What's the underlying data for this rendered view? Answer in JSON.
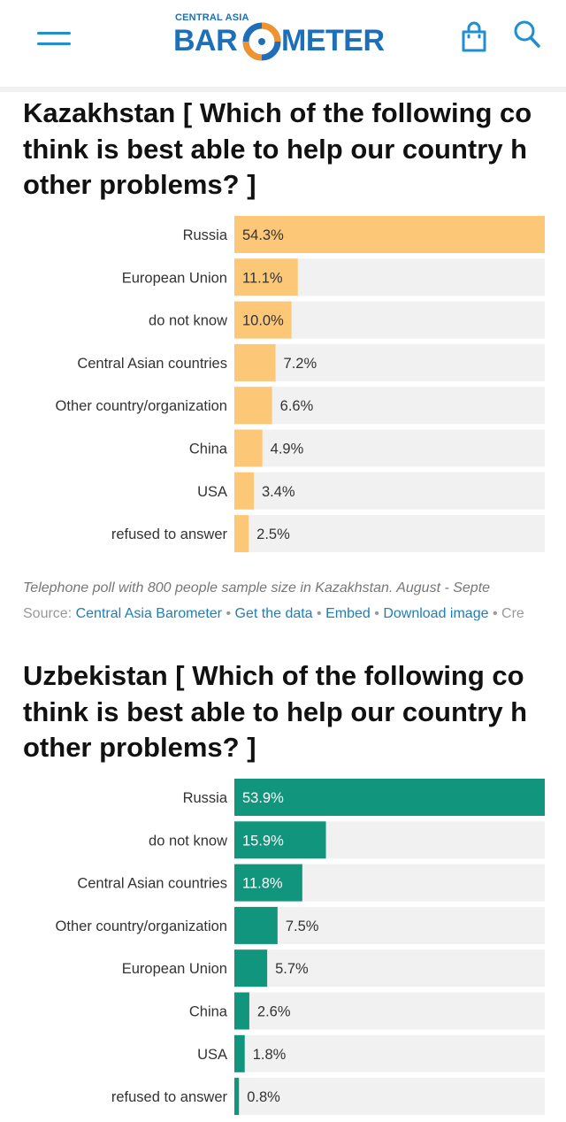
{
  "header": {
    "logo_top": "CENTRAL ASIA",
    "logo_left": "BAR",
    "logo_right": "METER",
    "menu_icon": "hamburger-menu-icon",
    "bag_icon": "shopping-bag-icon",
    "search_icon": "search-icon",
    "brand_color": "#1f6fb8",
    "accent_color": "#f0922e"
  },
  "chart_data": [
    {
      "type": "bar",
      "orientation": "horizontal",
      "title_lines": [
        "Kazakhstan [ Which of the following co",
        "think is best able to help our country h",
        "other problems? ]"
      ],
      "categories": [
        "Russia",
        "European Union",
        "do not know",
        "Central Asian countries",
        "Other country/organization",
        "China",
        "USA",
        "refused to answer"
      ],
      "values": [
        54.3,
        11.1,
        10.0,
        7.2,
        6.6,
        4.9,
        3.4,
        2.5
      ],
      "labels": [
        "54.3%",
        "11.1%",
        "10.0%",
        "7.2%",
        "6.6%",
        "4.9%",
        "3.4%",
        "2.5%"
      ],
      "unit": "%",
      "xlim": [
        0,
        54.3
      ],
      "bar_color": "#fcc877",
      "track_color": "#f1f1f1",
      "grid": false,
      "caption": "Telephone poll with 800 people sample size in Kazakhstan. August - Septe"
    },
    {
      "type": "bar",
      "orientation": "horizontal",
      "title_lines": [
        "Uzbekistan [ Which of the following co",
        "think is best able to help our country h",
        "other problems? ]"
      ],
      "categories": [
        "Russia",
        "do not know",
        "Central Asian countries",
        "Other country/organization",
        "European Union",
        "China",
        "USA",
        "refused to answer"
      ],
      "values": [
        53.9,
        15.9,
        11.8,
        7.5,
        5.7,
        2.6,
        1.8,
        0.8
      ],
      "labels": [
        "53.9%",
        "15.9%",
        "11.8%",
        "7.5%",
        "5.7%",
        "2.6%",
        "1.8%",
        "0.8%"
      ],
      "unit": "%",
      "xlim": [
        0,
        53.9
      ],
      "bar_color": "#11957c",
      "track_color": "#f1f1f1",
      "grid": false
    }
  ],
  "source": {
    "prefix": "Source:",
    "source_link": "Central Asia Barometer",
    "get_data": "Get the data",
    "embed": "Embed",
    "download": "Download image",
    "trailing": "Cre",
    "separator": "•"
  }
}
